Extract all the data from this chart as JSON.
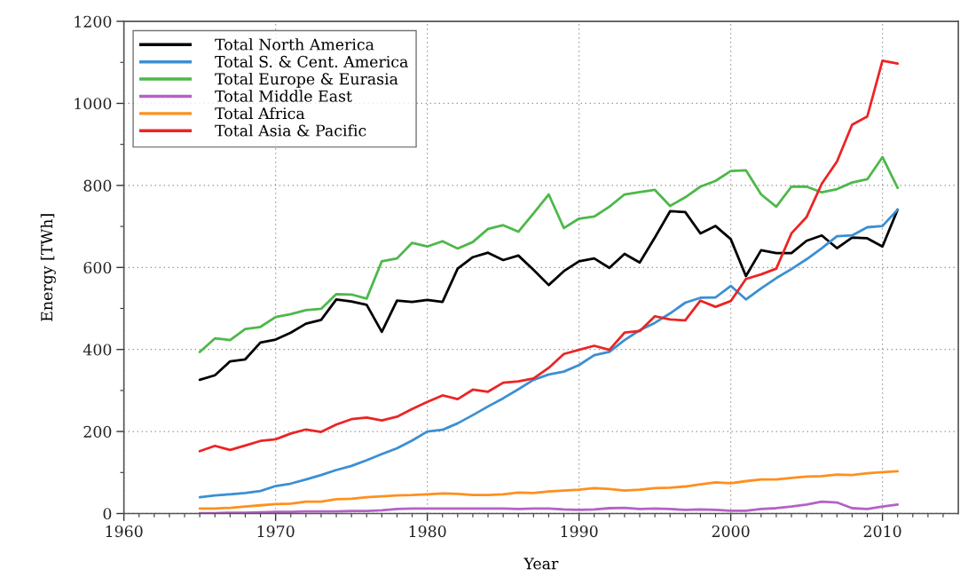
{
  "chart_data": {
    "type": "line",
    "xlabel": "Year",
    "ylabel": "Energy [TWh]",
    "x": [
      1965,
      1966,
      1967,
      1968,
      1969,
      1970,
      1971,
      1972,
      1973,
      1974,
      1975,
      1976,
      1977,
      1978,
      1979,
      1980,
      1981,
      1982,
      1983,
      1984,
      1985,
      1986,
      1987,
      1988,
      1989,
      1990,
      1991,
      1992,
      1993,
      1994,
      1995,
      1996,
      1997,
      1998,
      1999,
      2000,
      2001,
      2002,
      2003,
      2004,
      2005,
      2006,
      2007,
      2008,
      2009,
      2010,
      2011
    ],
    "series": [
      {
        "name": "Total North America",
        "color": "#000000",
        "values": [
          326,
          337,
          371,
          376,
          417,
          424,
          441,
          463,
          472,
          522,
          517,
          509,
          443,
          519,
          516,
          521,
          516,
          597,
          625,
          636,
          618,
          629,
          594,
          557,
          591,
          615,
          622,
          599,
          633,
          612,
          673,
          737,
          735,
          683,
          701,
          669,
          579,
          642,
          635,
          635,
          665,
          678,
          647,
          673,
          671,
          651,
          741
        ]
      },
      {
        "name": "Total S. & Cent. America",
        "color": "#3b8fd3",
        "values": [
          40,
          44,
          47,
          50,
          55,
          67,
          73,
          83,
          94,
          106,
          116,
          130,
          145,
          159,
          178,
          200,
          204,
          220,
          240,
          261,
          281,
          303,
          326,
          339,
          346,
          362,
          386,
          394,
          423,
          447,
          465,
          488,
          514,
          526,
          527,
          555,
          522,
          549,
          574,
          596,
          620,
          647,
          676,
          678,
          698,
          701,
          741
        ]
      },
      {
        "name": "Total Europe & Eurasia",
        "color": "#4db84a",
        "values": [
          394,
          427,
          423,
          450,
          455,
          479,
          486,
          496,
          499,
          535,
          534,
          524,
          615,
          622,
          660,
          651,
          664,
          646,
          662,
          694,
          703,
          687,
          732,
          778,
          696,
          719,
          724,
          748,
          778,
          784,
          789,
          750,
          771,
          797,
          811,
          835,
          837,
          778,
          748,
          797,
          797,
          783,
          791,
          807,
          815,
          869,
          794
        ]
      },
      {
        "name": "Total Middle East",
        "color": "#b462c6",
        "values": [
          1,
          1,
          2,
          2,
          3,
          4,
          4,
          5,
          5,
          5,
          6,
          6,
          8,
          11,
          12,
          12,
          12,
          12,
          12,
          12,
          12,
          11,
          12,
          12,
          10,
          9,
          10,
          13,
          14,
          11,
          12,
          11,
          9,
          10,
          9,
          7,
          7,
          11,
          13,
          17,
          22,
          29,
          27,
          13,
          11,
          17,
          22
        ]
      },
      {
        "name": "Total Africa",
        "color": "#ff8f1f",
        "values": [
          12,
          12,
          14,
          17,
          20,
          23,
          24,
          29,
          29,
          35,
          36,
          40,
          42,
          44,
          45,
          47,
          49,
          48,
          45,
          45,
          47,
          51,
          50,
          54,
          56,
          58,
          62,
          60,
          56,
          58,
          62,
          63,
          66,
          71,
          76,
          74,
          79,
          83,
          83,
          87,
          90,
          91,
          95,
          94,
          98,
          101,
          103
        ]
      },
      {
        "name": "Total Asia & Pacific",
        "color": "#ec2424",
        "values": [
          152,
          165,
          155,
          166,
          177,
          181,
          195,
          205,
          199,
          217,
          230,
          234,
          227,
          236,
          255,
          272,
          288,
          279,
          302,
          297,
          319,
          322,
          329,
          355,
          389,
          399,
          409,
          399,
          441,
          445,
          481,
          473,
          471,
          519,
          504,
          518,
          572,
          583,
          597,
          683,
          723,
          804,
          858,
          948,
          968,
          1104,
          1097
        ]
      }
    ],
    "xlim": [
      1960,
      2015
    ],
    "xticks": [
      1960,
      {
        "value": 1961,
        "label": null
      },
      {
        "value": 1962,
        "label": null
      },
      {
        "value": 1963,
        "label": null
      },
      {
        "value": 1964,
        "label": null
      },
      {
        "value": 1965,
        "label": null
      },
      {
        "value": 1966,
        "label": null
      },
      {
        "value": 1967,
        "label": null
      },
      {
        "value": 1968,
        "label": null
      },
      {
        "value": 1969,
        "label": null
      },
      1970,
      {
        "value": 1971,
        "label": null
      },
      {
        "value": 1972,
        "label": null
      },
      {
        "value": 1973,
        "label": null
      },
      {
        "value": 1974,
        "label": null
      },
      {
        "value": 1975,
        "label": null
      },
      {
        "value": 1976,
        "label": null
      },
      {
        "value": 1977,
        "label": null
      },
      {
        "value": 1978,
        "label": null
      },
      {
        "value": 1979,
        "label": null
      },
      1980,
      {
        "value": 1981,
        "label": null
      },
      {
        "value": 1982,
        "label": null
      },
      {
        "value": 1983,
        "label": null
      },
      {
        "value": 1984,
        "label": null
      },
      {
        "value": 1985,
        "label": null
      },
      {
        "value": 1986,
        "label": null
      },
      {
        "value": 1987,
        "label": null
      },
      {
        "value": 1988,
        "label": null
      },
      {
        "value": 1989,
        "label": null
      },
      1990,
      {
        "value": 1991,
        "label": null
      },
      {
        "value": 1992,
        "label": null
      },
      {
        "value": 1993,
        "label": null
      },
      {
        "value": 1994,
        "label": null
      },
      {
        "value": 1995,
        "label": null
      },
      {
        "value": 1996,
        "label": null
      },
      {
        "value": 1997,
        "label": null
      },
      {
        "value": 1998,
        "label": null
      },
      {
        "value": 1999,
        "label": null
      },
      2000,
      {
        "value": 2001,
        "label": null
      },
      {
        "value": 2002,
        "label": null
      },
      {
        "value": 2003,
        "label": null
      },
      {
        "value": 2004,
        "label": null
      },
      {
        "value": 2005,
        "label": null
      },
      {
        "value": 2006,
        "label": null
      },
      {
        "value": 2007,
        "label": null
      },
      {
        "value": 2008,
        "label": null
      },
      {
        "value": 2009,
        "label": null
      },
      2010,
      {
        "value": 2011,
        "label": null
      },
      {
        "value": 2012,
        "label": null
      },
      {
        "value": 2013,
        "label": null
      },
      {
        "value": 2014,
        "label": null
      }
    ],
    "ylim": [
      0,
      1200
    ],
    "yticks": [
      0,
      {
        "value": 100,
        "label": null
      },
      200,
      {
        "value": 300,
        "label": null
      },
      400,
      {
        "value": 500,
        "label": null
      },
      600,
      {
        "value": 700,
        "label": null
      },
      800,
      {
        "value": 900,
        "label": null
      },
      1000,
      {
        "value": 1100,
        "label": null
      },
      1200
    ],
    "grid": true,
    "legend": "top left",
    "marker": "none",
    "line_style": "solid"
  }
}
